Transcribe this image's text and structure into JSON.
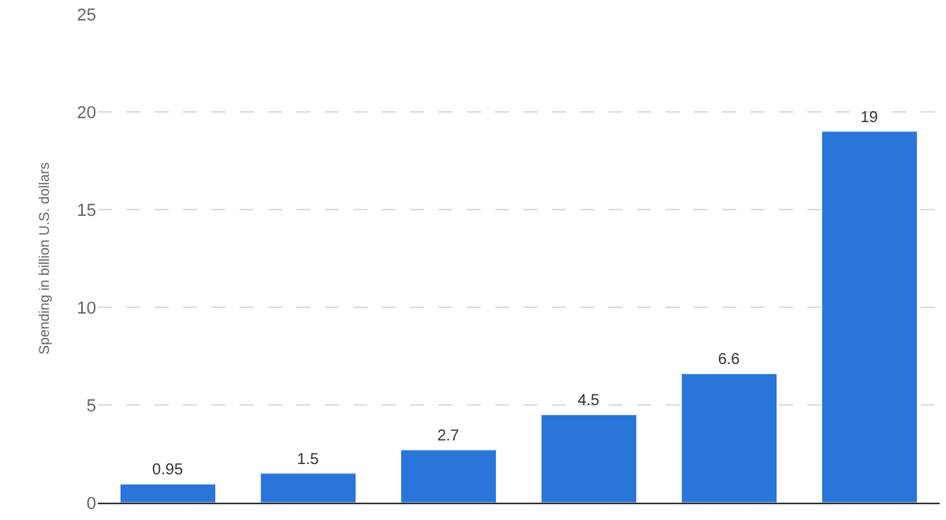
{
  "chart_data": {
    "type": "bar",
    "ylabel": "Spending in billion U.S. dollars",
    "categories": [
      null,
      null,
      null,
      null,
      null,
      null
    ],
    "values": [
      0.95,
      1.5,
      2.7,
      4.5,
      6.6,
      19
    ],
    "color": "#2a75d9",
    "ylim": [
      0,
      25
    ],
    "yticks": [
      0,
      5,
      10,
      15,
      20,
      25
    ],
    "grid": "y",
    "data_labels": true
  }
}
